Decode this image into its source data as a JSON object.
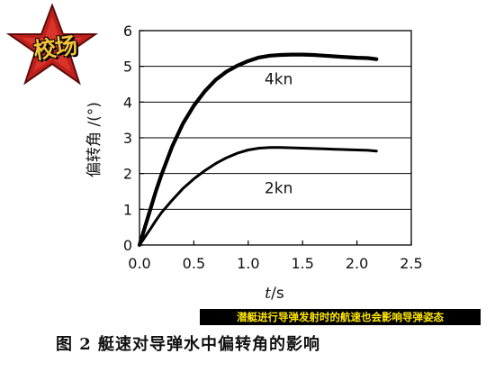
{
  "watermark": {
    "text": "校场"
  },
  "note": "潜艇进行导弹发射时的航速也会影响导弹姿态",
  "caption": "图 2   艇速对导弹水中偏转角的影响",
  "chart_data": {
    "type": "line",
    "title": "",
    "xlabel_italic": "t",
    "xlabel_unit": "/s",
    "ylabel": "偏转角 /(°)",
    "xlim": [
      0,
      2.5
    ],
    "ylim": [
      0,
      6
    ],
    "x_ticks": [
      0.0,
      0.5,
      1.0,
      1.5,
      2.0,
      2.5
    ],
    "x_tick_labels": [
      "0.0",
      "0.5",
      "1.0",
      "1.5",
      "2.0",
      "2.5"
    ],
    "y_ticks": [
      0,
      1,
      2,
      3,
      4,
      5,
      6
    ],
    "y_tick_labels": [
      "0",
      "1",
      "2",
      "3",
      "4",
      "5",
      "6"
    ],
    "grid": "horizontal",
    "line_color": "#000000",
    "series": [
      {
        "name": "4kn",
        "x": [
          0,
          0.05,
          0.1,
          0.15,
          0.2,
          0.3,
          0.4,
          0.5,
          0.6,
          0.7,
          0.8,
          0.9,
          1.0,
          1.1,
          1.2,
          1.3,
          1.4,
          1.5,
          1.6,
          1.7,
          1.8,
          1.9,
          2.0,
          2.1,
          2.18
        ],
        "y": [
          0,
          0.5,
          1.0,
          1.5,
          1.95,
          2.75,
          3.4,
          3.9,
          4.3,
          4.62,
          4.85,
          5.02,
          5.15,
          5.25,
          5.3,
          5.32,
          5.33,
          5.33,
          5.32,
          5.3,
          5.28,
          5.26,
          5.24,
          5.23,
          5.2
        ]
      },
      {
        "name": "2kn",
        "x": [
          0,
          0.05,
          0.1,
          0.15,
          0.2,
          0.3,
          0.4,
          0.5,
          0.6,
          0.7,
          0.8,
          0.9,
          1.0,
          1.1,
          1.2,
          1.3,
          1.4,
          1.5,
          1.6,
          1.7,
          1.8,
          1.9,
          2.0,
          2.1,
          2.18
        ],
        "y": [
          0,
          0.22,
          0.45,
          0.68,
          0.9,
          1.25,
          1.58,
          1.85,
          2.08,
          2.28,
          2.44,
          2.57,
          2.66,
          2.71,
          2.73,
          2.73,
          2.72,
          2.71,
          2.7,
          2.69,
          2.68,
          2.67,
          2.66,
          2.65,
          2.63
        ]
      }
    ],
    "annotations": [
      {
        "text": "4kn",
        "x": 1.15,
        "y": 4.5
      },
      {
        "text": "2kn",
        "x": 1.15,
        "y": 1.45
      }
    ]
  }
}
